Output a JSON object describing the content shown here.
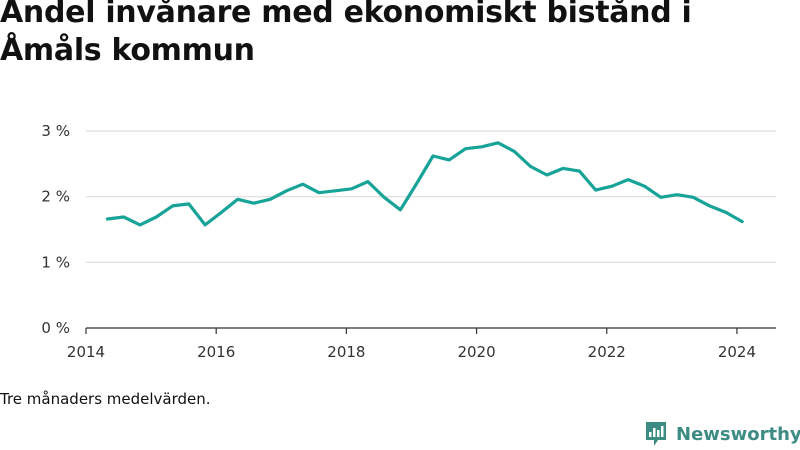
{
  "title": "Andel invånare med ekonomiskt bistånd i Åmåls kommun",
  "note": "Tre månaders medelvärden.",
  "brand": "Newsworthy",
  "colors": {
    "line": "#17a398",
    "grid": "#dddddd",
    "axis": "#333333",
    "brand": "#3d8c84"
  },
  "icons": {
    "brand_logo": "newsworthy-logo-icon"
  },
  "chart_data": {
    "type": "line",
    "title": "Andel invånare med ekonomiskt bistånd i Åmåls kommun",
    "xlabel": "",
    "ylabel": "",
    "x_ticks": [
      "2014",
      "2016",
      "2018",
      "2020",
      "2022",
      "2024"
    ],
    "x_tick_values": [
      2014,
      2016,
      2018,
      2020,
      2022,
      2024
    ],
    "y_ticks": [
      "0 %",
      "1 %",
      "2 %",
      "3 %"
    ],
    "y_tick_values": [
      0,
      1,
      2,
      3
    ],
    "xlim": [
      2014,
      2024.6
    ],
    "ylim": [
      0,
      3
    ],
    "grid": true,
    "series": [
      {
        "x": [
          2014.33,
          2014.58,
          2014.83,
          2015.08,
          2015.33,
          2015.58,
          2015.83,
          2016.08,
          2016.33,
          2016.58,
          2016.83,
          2017.08,
          2017.33,
          2017.58,
          2017.83,
          2018.08,
          2018.33,
          2018.58,
          2018.83,
          2019.08,
          2019.33,
          2019.58,
          2019.83,
          2020.08,
          2020.33,
          2020.58,
          2020.83,
          2021.08,
          2021.33,
          2021.58,
          2021.83,
          2022.08,
          2022.33,
          2022.58,
          2022.83,
          2023.08,
          2023.33,
          2023.58,
          2023.83,
          2024.08
        ],
        "values": [
          1.66,
          1.69,
          1.57,
          1.69,
          1.86,
          1.89,
          1.57,
          1.76,
          1.96,
          1.9,
          1.96,
          2.09,
          2.19,
          2.06,
          2.09,
          2.12,
          2.23,
          1.99,
          1.8,
          2.2,
          2.62,
          2.56,
          2.73,
          2.76,
          2.82,
          2.69,
          2.46,
          2.33,
          2.43,
          2.39,
          2.1,
          2.16,
          2.26,
          2.16,
          1.99,
          2.03,
          1.99,
          1.86,
          1.76,
          1.62
        ]
      }
    ]
  }
}
